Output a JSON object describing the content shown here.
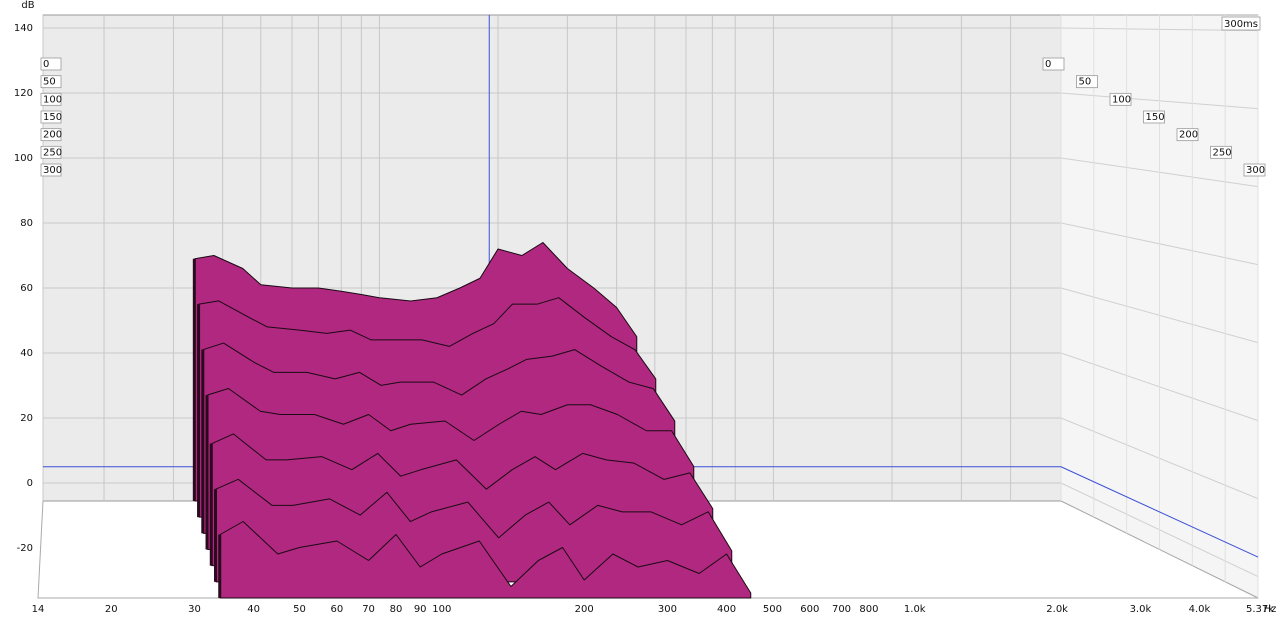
{
  "chart_data": {
    "type": "waterfall",
    "y_label": "dB",
    "x_label": "Hz",
    "z_label": "300ms",
    "xlim": [
      14,
      5370
    ],
    "xticks": [
      14,
      20,
      30,
      40,
      50,
      60,
      70,
      80,
      90,
      100,
      200,
      300,
      400,
      500,
      600,
      700,
      800,
      {
        "value": 1000,
        "label": "1.0k"
      },
      {
        "value": 2000,
        "label": "2.0k"
      },
      {
        "value": 3000,
        "label": "3.0k"
      },
      {
        "value": 4000,
        "label": "4.0k"
      },
      {
        "value": 5370,
        "label": "5.37k"
      }
    ],
    "ylim": [
      -36,
      144
    ],
    "yticks": [
      -20,
      0,
      20,
      40,
      60,
      80,
      100,
      120,
      140
    ],
    "zlim": [
      0,
      300
    ],
    "zticks": [
      0,
      50,
      100,
      150,
      200,
      250,
      300
    ],
    "grid": true,
    "color": "#b0287f",
    "cursor": {
      "x": 190,
      "y": 5,
      "color": "#3b4fd6"
    },
    "x": [
      34,
      38,
      45,
      50,
      60,
      70,
      80,
      90,
      100,
      120,
      140,
      160,
      180,
      200,
      230,
      260,
      300,
      350,
      400,
      450
    ],
    "series": [
      {
        "z": 0,
        "values": [
          69,
          70,
          66,
          61,
          60,
          60,
          59,
          58,
          57,
          56,
          57,
          60,
          63,
          72,
          70,
          74,
          66,
          60,
          54,
          45
        ]
      },
      {
        "z": 50,
        "values": [
          60,
          61,
          56,
          53,
          52,
          51,
          52,
          49,
          49,
          49,
          47,
          51,
          54,
          60,
          60,
          62,
          56,
          50,
          46,
          37
        ]
      },
      {
        "z": 100,
        "values": [
          51,
          53,
          47,
          44,
          44,
          42,
          44,
          40,
          41,
          41,
          37,
          42,
          45,
          48,
          49,
          51,
          46,
          41,
          39,
          29
        ]
      },
      {
        "z": 150,
        "values": [
          42,
          44,
          37,
          36,
          36,
          33,
          36,
          31,
          33,
          34,
          28,
          33,
          37,
          36,
          39,
          39,
          36,
          31,
          31,
          20
        ]
      },
      {
        "z": 200,
        "values": [
          32,
          35,
          27,
          27,
          28,
          24,
          29,
          22,
          24,
          27,
          18,
          24,
          28,
          24,
          29,
          27,
          26,
          21,
          23,
          12
        ]
      },
      {
        "z": 250,
        "values": [
          23,
          26,
          18,
          18,
          20,
          15,
          22,
          13,
          16,
          19,
          8,
          15,
          19,
          12,
          18,
          16,
          16,
          12,
          16,
          4
        ]
      },
      {
        "z": 300,
        "values": [
          14,
          18,
          8,
          10,
          12,
          6,
          14,
          4,
          8,
          12,
          -2,
          6,
          10,
          0,
          8,
          4,
          6,
          2,
          8,
          -4
        ]
      }
    ]
  }
}
